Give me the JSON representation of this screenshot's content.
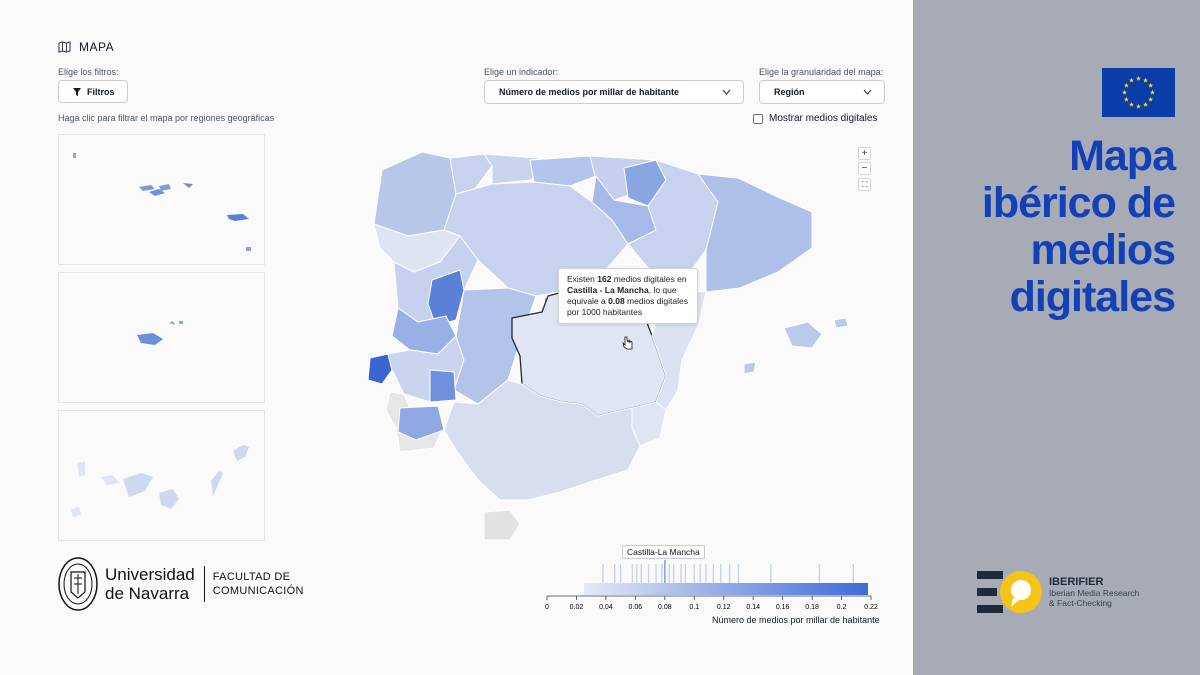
{
  "header": {
    "title": "MAPA"
  },
  "filters": {
    "label": "Elige los filtros:",
    "button_label": "Filtros",
    "hint": "Haga clic para filtrar el mapa por regiones geográficas"
  },
  "indicator": {
    "label": "Elige un indicador:",
    "value": "Número de medios por millar de habitante"
  },
  "granularity": {
    "label": "Elige la granularidad del mapa:",
    "value": "Región"
  },
  "digital_toggle": {
    "label": "Mostrar medios digitales",
    "checked": false
  },
  "zoom": {
    "in": "+",
    "out": "−",
    "fit": "⛶"
  },
  "tooltip": {
    "p1": "Existen ",
    "count": "162",
    "p2": " medios digitales en ",
    "region": "Castilla - La Mancha",
    "p3": ", lo que equivale a ",
    "ratio": "0.08",
    "p4": " medios digitales por 1000 habitantes"
  },
  "legend": {
    "highlight_label": "Castilla-La Mancha",
    "title": "Número de medios por millar de habitante",
    "ticks": [
      "0",
      "0.02",
      "0.04",
      "0.06",
      "0.08",
      "0.1",
      "0.12",
      "0.14",
      "0.16",
      "0.18",
      "0.2",
      "0.22"
    ],
    "range": [
      0,
      0.22
    ],
    "color_low": "#e4e9f4",
    "color_high": "#3d6bd8"
  },
  "university": {
    "line1": "Universidad",
    "line2": "de Navarra",
    "faculty1": "FACULTAD DE",
    "faculty2": "COMUNICACIÓN"
  },
  "side": {
    "title_line1": "Mapa",
    "title_line2": "ibérico de",
    "title_line3": "medios",
    "title_line4": "digitales",
    "brand": "IBERIFIER",
    "brand_sub1": "Iberian Media Research",
    "brand_sub2": "& Fact-Checking",
    "title_color": "#1340b5",
    "eu_blue": "#0b3da8",
    "eu_star": "#ffd617"
  }
}
